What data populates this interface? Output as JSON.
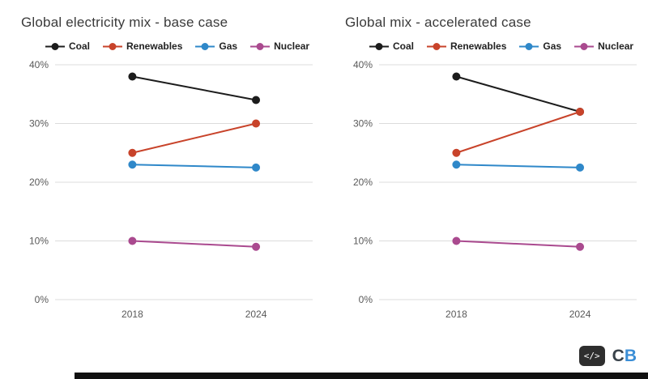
{
  "chart_data": [
    {
      "type": "line",
      "title": "Global electricity mix - base case",
      "x": [
        "2018",
        "2024"
      ],
      "ylim": [
        0,
        40
      ],
      "grid": true,
      "legend_position": "top",
      "yticks": [
        {
          "label": "0%",
          "value": 0
        },
        {
          "label": "10%",
          "value": 10
        },
        {
          "label": "20%",
          "value": 20
        },
        {
          "label": "30%",
          "value": 30
        },
        {
          "label": "40%",
          "value": 40
        }
      ],
      "series": [
        {
          "name": "Coal",
          "color": "#1c1c1c",
          "values": [
            38,
            34
          ]
        },
        {
          "name": "Renewables",
          "color": "#c8432a",
          "values": [
            25,
            30
          ]
        },
        {
          "name": "Gas",
          "color": "#2f88c9",
          "values": [
            23,
            22.5
          ]
        },
        {
          "name": "Nuclear",
          "color": "#aa4a8f",
          "values": [
            10,
            9
          ]
        }
      ]
    },
    {
      "type": "line",
      "title": "Global mix - accelerated case",
      "x": [
        "2018",
        "2024"
      ],
      "ylim": [
        0,
        40
      ],
      "grid": true,
      "legend_position": "top",
      "yticks": [
        {
          "label": "0%",
          "value": 0
        },
        {
          "label": "10%",
          "value": 10
        },
        {
          "label": "20%",
          "value": 20
        },
        {
          "label": "30%",
          "value": 30
        },
        {
          "label": "40%",
          "value": 40
        }
      ],
      "series": [
        {
          "name": "Coal",
          "color": "#1c1c1c",
          "values": [
            38,
            32
          ]
        },
        {
          "name": "Renewables",
          "color": "#c8432a",
          "values": [
            25,
            32
          ]
        },
        {
          "name": "Gas",
          "color": "#2f88c9",
          "values": [
            23,
            22.5
          ]
        },
        {
          "name": "Nuclear",
          "color": "#aa4a8f",
          "values": [
            10,
            9
          ]
        }
      ]
    }
  ],
  "footer": {
    "embed_label": "</>",
    "logo_c": "C",
    "logo_b": "B"
  }
}
